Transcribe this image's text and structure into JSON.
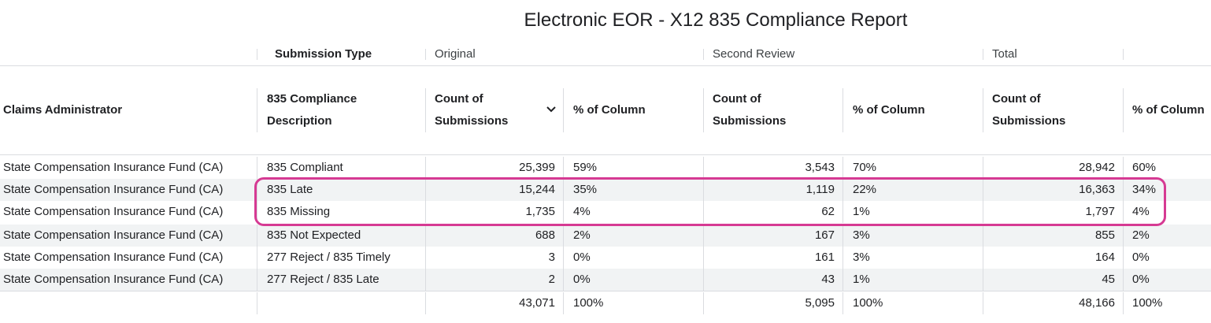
{
  "title": "Electronic EOR - X12 835 Compliance Report",
  "group_headers": {
    "submission_type": "Submission Type",
    "original": "Original",
    "second_review": "Second Review",
    "total": "Total"
  },
  "columns": {
    "claims_admin": "Claims Administrator",
    "desc_line1": "835 Compliance",
    "desc_line2": "Description",
    "count_line1": "Count of",
    "count_line2": "Submissions",
    "pct": "% of Column",
    "sort_icon": "chevron-down-icon"
  },
  "rows": [
    {
      "admin": "State Compensation Insurance Fund (CA)",
      "desc": "835 Compliant",
      "orig_count": "25,399",
      "orig_pct": "59%",
      "sr_count": "3,543",
      "sr_pct": "70%",
      "tot_count": "28,942",
      "tot_pct": "60%"
    },
    {
      "admin": "State Compensation Insurance Fund (CA)",
      "desc": "835 Late",
      "orig_count": "15,244",
      "orig_pct": "35%",
      "sr_count": "1,119",
      "sr_pct": "22%",
      "tot_count": "16,363",
      "tot_pct": "34%"
    },
    {
      "admin": "State Compensation Insurance Fund (CA)",
      "desc": "835 Missing",
      "orig_count": "1,735",
      "orig_pct": "4%",
      "sr_count": "62",
      "sr_pct": "1%",
      "tot_count": "1,797",
      "tot_pct": "4%"
    },
    {
      "admin": "State Compensation Insurance Fund (CA)",
      "desc": "835 Not Expected",
      "orig_count": "688",
      "orig_pct": "2%",
      "sr_count": "167",
      "sr_pct": "3%",
      "tot_count": "855",
      "tot_pct": "2%"
    },
    {
      "admin": "State Compensation Insurance Fund (CA)",
      "desc": "277 Reject / 835 Timely",
      "orig_count": "3",
      "orig_pct": "0%",
      "sr_count": "161",
      "sr_pct": "3%",
      "tot_count": "164",
      "tot_pct": "0%"
    },
    {
      "admin": "State Compensation Insurance Fund (CA)",
      "desc": "277 Reject / 835 Late",
      "orig_count": "2",
      "orig_pct": "0%",
      "sr_count": "43",
      "sr_pct": "1%",
      "tot_count": "45",
      "tot_pct": "0%"
    }
  ],
  "totals": {
    "orig_count": "43,071",
    "orig_pct": "100%",
    "sr_count": "5,095",
    "sr_pct": "100%",
    "tot_count": "48,166",
    "tot_pct": "100%"
  },
  "colors": {
    "highlight": "#d63a93",
    "alt_row": "#f1f3f4",
    "divider": "#dadce0"
  }
}
